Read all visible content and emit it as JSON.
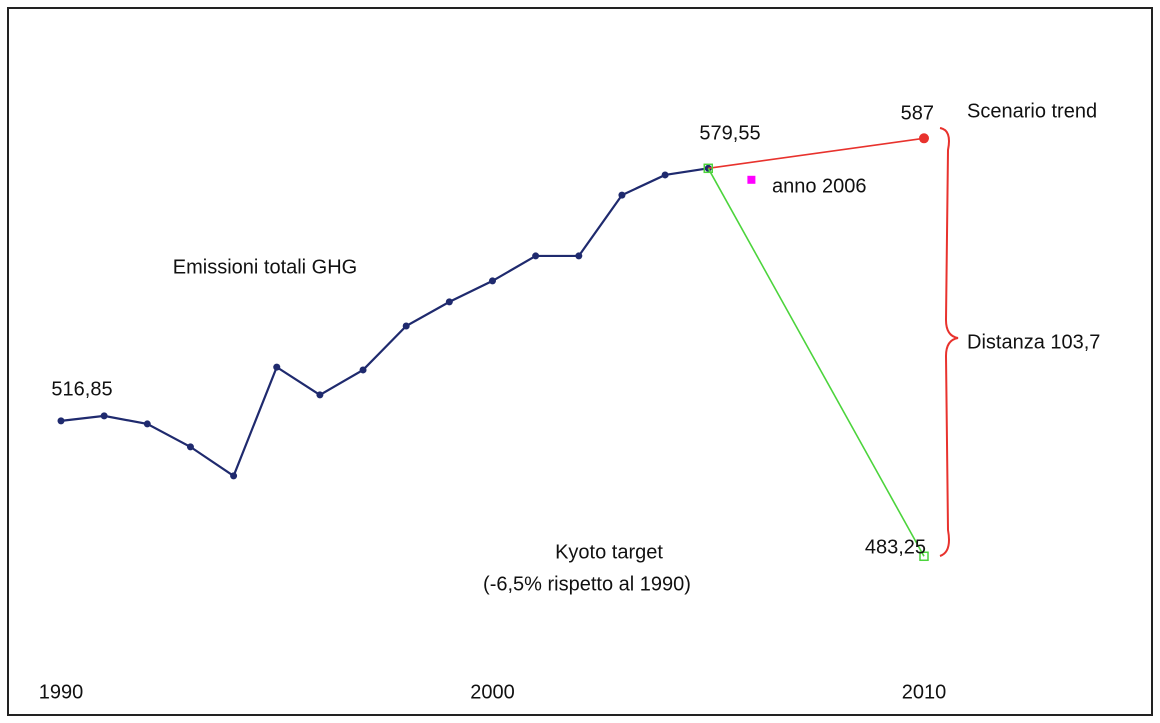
{
  "chart_data": {
    "type": "line",
    "xlim": [
      1990,
      2010
    ],
    "ylim": [
      457.5,
      611.4
    ],
    "xticks": [
      1990,
      2000,
      2010
    ],
    "series": [
      {
        "name": "Emissioni totali GHG",
        "color": "#1f2a6e",
        "x": [
          1990,
          1991,
          1992,
          1993,
          1994,
          1995,
          1996,
          1997,
          1998,
          1999,
          2000,
          2001,
          2002,
          2003,
          2004,
          2005
        ],
        "values": [
          516.85,
          518.1,
          516.1,
          510.4,
          503.2,
          530.2,
          523.3,
          529.5,
          540.4,
          546.4,
          551.6,
          557.8,
          557.8,
          572.9,
          577.9,
          579.55
        ],
        "value_labels": [
          "516,85",
          null,
          null,
          null,
          null,
          null,
          null,
          null,
          null,
          null,
          null,
          null,
          null,
          null,
          null,
          "579,55"
        ]
      },
      {
        "name": "Scenario trend",
        "color": "#e8322d",
        "x": [
          2005,
          2010
        ],
        "values": [
          579.55,
          587
        ],
        "value_labels": [
          null,
          "587"
        ]
      },
      {
        "name": "Kyoto target",
        "color": "#4cd43c",
        "x": [
          2005,
          2010
        ],
        "values": [
          579.55,
          483.25
        ],
        "value_labels": [
          null,
          "483,25"
        ]
      },
      {
        "name": "anno 2006",
        "color": "#ff00ff",
        "x": [
          2006
        ],
        "values": [
          576.7
        ],
        "value_labels": [
          null
        ]
      }
    ],
    "annotations": [
      "(-6,5% rispetto al 1990)",
      "Distanza 103,7"
    ]
  }
}
